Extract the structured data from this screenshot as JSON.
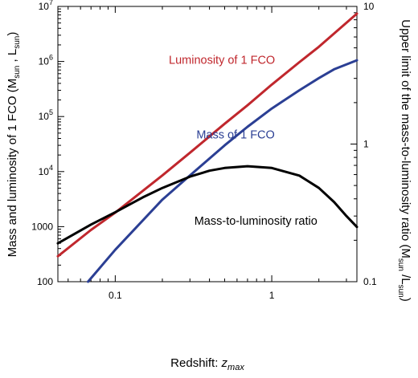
{
  "chart_data": {
    "type": "line",
    "xlabel_main": "Redshift: ",
    "xlabel_var": "z",
    "xlabel_sub": "max",
    "ylabel_left": {
      "part1": "Mass and luminosity of 1 FCO (M",
      "sub1": "sun",
      "part2": " , L",
      "sub2": "sun",
      "part3": ")"
    },
    "ylabel_right": {
      "part1": "Upper limit of the mass-to-luminosity ratio (M",
      "sub1": "sun",
      "part2": " /L",
      "sub2": "sun",
      "part3": ")"
    },
    "x_scale": "log",
    "xlim": [
      0.043,
      3.5
    ],
    "y_left_scale": "log",
    "y_left_lim": [
      100,
      10000000
    ],
    "y_right_scale": "log",
    "y_right_lim": [
      0.1,
      10
    ],
    "x_ticks": [
      {
        "value": 0.1,
        "label": "0.1"
      },
      {
        "value": 1,
        "label": "1"
      }
    ],
    "y_left_ticks": [
      {
        "value": 100,
        "label": "100"
      },
      {
        "value": 1000,
        "label": "1000"
      },
      {
        "value": 10000,
        "base": "10",
        "exp": "4"
      },
      {
        "value": 100000,
        "base": "10",
        "exp": "5"
      },
      {
        "value": 1000000,
        "base": "10",
        "exp": "6"
      },
      {
        "value": 10000000,
        "base": "10",
        "exp": "7"
      }
    ],
    "y_right_ticks": [
      {
        "value": 0.1,
        "label": "0.1"
      },
      {
        "value": 1,
        "label": "1"
      },
      {
        "value": 10,
        "label": "10"
      }
    ],
    "grid": false,
    "series": [
      {
        "name": "Luminosity of 1 FCO",
        "axis": "left",
        "color": "#c0272d",
        "x": [
          0.043,
          0.07,
          0.1,
          0.2,
          0.3,
          0.5,
          0.7,
          1,
          1.5,
          2,
          3.5
        ],
        "y": [
          290,
          870,
          1800,
          8500,
          22000,
          74000,
          160000,
          380000,
          970000,
          1850000,
          7400000
        ]
      },
      {
        "name": "Mass of 1 FCO",
        "axis": "left",
        "color": "#2b3f94",
        "x": [
          0.067,
          0.1,
          0.2,
          0.3,
          0.5,
          0.7,
          1,
          1.5,
          2,
          2.5,
          3.5
        ],
        "y": [
          100,
          380,
          3100,
          8500,
          30000,
          65000,
          140000,
          300000,
          500000,
          720000,
          1050000
        ]
      },
      {
        "name": "Mass-to-luminosity ratio",
        "axis": "right",
        "color": "#000000",
        "x": [
          0.043,
          0.07,
          0.1,
          0.15,
          0.2,
          0.3,
          0.4,
          0.5,
          0.7,
          1,
          1.5,
          2,
          2.5,
          3,
          3.5
        ],
        "y": [
          0.19,
          0.26,
          0.32,
          0.41,
          0.48,
          0.58,
          0.64,
          0.67,
          0.69,
          0.67,
          0.59,
          0.48,
          0.38,
          0.3,
          0.25
        ]
      }
    ]
  }
}
